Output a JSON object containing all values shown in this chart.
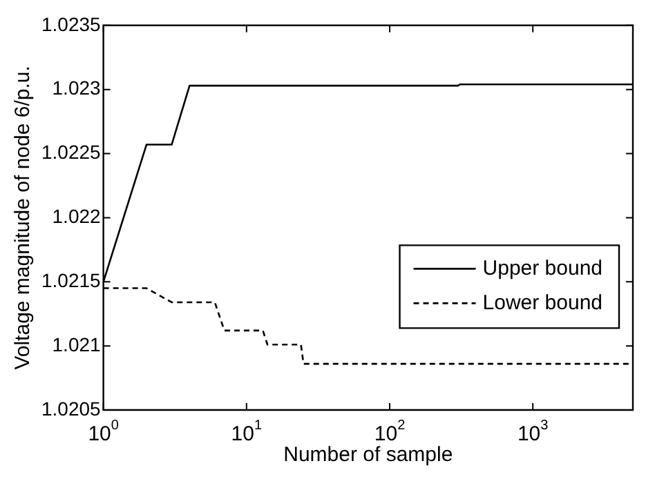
{
  "chart_data": {
    "type": "line",
    "xlabel": "Number of sample",
    "ylabel": "Voltage magnitude of node 6/p.u.",
    "log": "x",
    "xlim": [
      1,
      5000
    ],
    "ylim": [
      1.0205,
      1.0235
    ],
    "xticks": [
      {
        "value": 1,
        "label": "10$^{0}$"
      },
      {
        "value": 10,
        "label": "10$^{1}$"
      },
      {
        "value": 100,
        "label": "10$^{2}$"
      },
      {
        "value": 1000,
        "label": "10$^{3}$"
      }
    ],
    "yticks": [
      1.0205,
      1.021,
      1.0215,
      1.022,
      1.0225,
      1.023,
      1.0235
    ],
    "grid": false,
    "legend": "right",
    "marker": "none",
    "series": [
      {
        "name": "Upper bound",
        "color": "#000000",
        "line_style": "solid",
        "x": [
          1,
          2,
          3,
          4,
          300,
          310,
          5000
        ],
        "values": [
          1.0215,
          1.02257,
          1.02257,
          1.02303,
          1.02303,
          1.02304,
          1.02304
        ]
      },
      {
        "name": "Lower bound",
        "color": "#000000",
        "line_style": "dashed",
        "x": [
          1,
          2,
          3,
          6,
          7,
          13,
          14,
          24,
          25,
          5000
        ],
        "values": [
          1.02145,
          1.02145,
          1.02134,
          1.02134,
          1.02112,
          1.02112,
          1.02101,
          1.02101,
          1.02086,
          1.02086
        ]
      }
    ]
  }
}
